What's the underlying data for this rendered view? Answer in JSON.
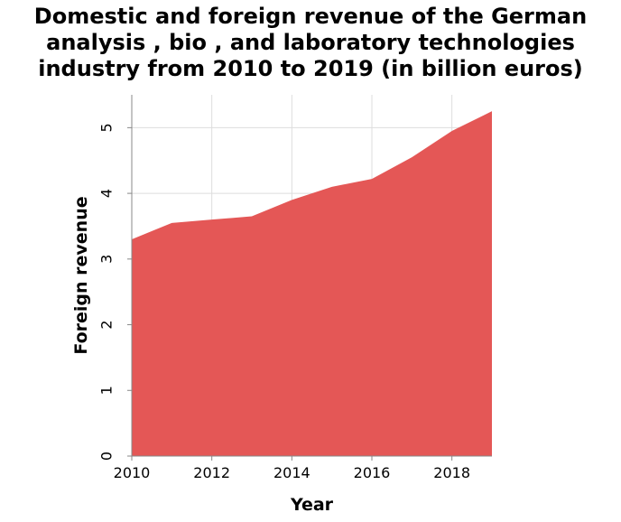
{
  "title_lines": [
    "Domestic and foreign revenue of the German",
    "analysis , bio , and laboratory technologies",
    "industry from 2010 to 2019 (in billion euros)"
  ],
  "chart_data": {
    "type": "area",
    "title": "Domestic and foreign revenue of the German analysis , bio , and laboratory technologies industry from 2010 to 2019 (in billion euros)",
    "xlabel": "Year",
    "ylabel": "Foreign revenue",
    "x": [
      2010,
      2011,
      2012,
      2013,
      2014,
      2015,
      2016,
      2017,
      2018,
      2019
    ],
    "series": [
      {
        "values": [
          3.3,
          3.55,
          3.6,
          3.65,
          3.9,
          4.1,
          4.22,
          4.55,
          4.95,
          5.25
        ]
      }
    ],
    "xlim": [
      2010,
      2019
    ],
    "ylim": [
      0,
      5.5
    ],
    "x_ticks": [
      "2010",
      "2012",
      "2014",
      "2016",
      "2018"
    ],
    "y_ticks": [
      "0",
      "1",
      "2",
      "3",
      "4",
      "5"
    ],
    "grid": true,
    "colors": {
      "area": "#e45756",
      "grid": "#dddddd",
      "axis": "#888888"
    }
  }
}
